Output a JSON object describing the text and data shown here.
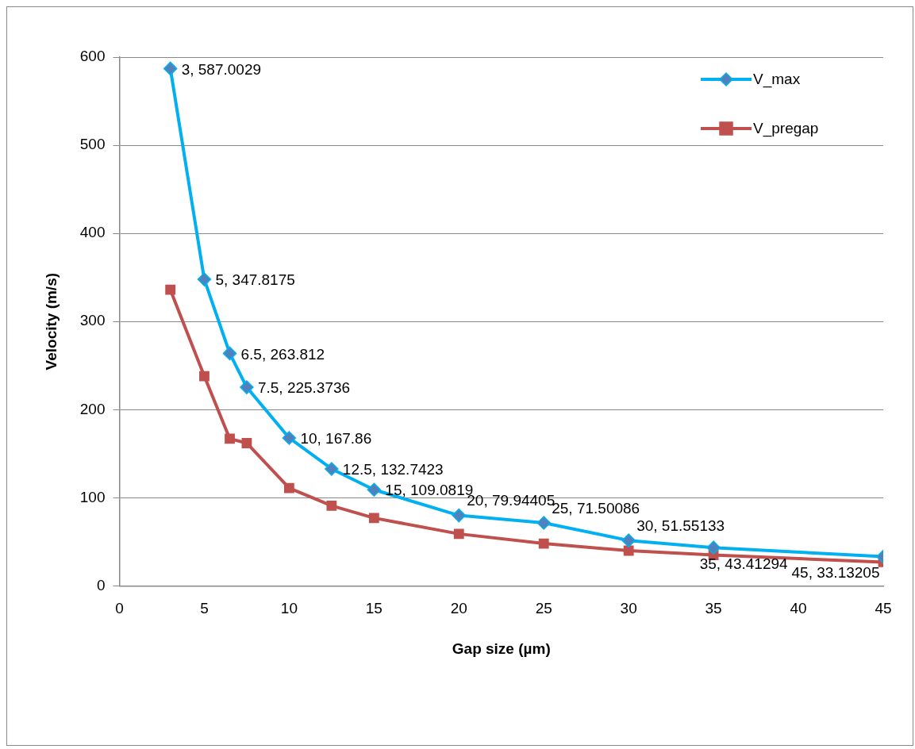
{
  "chart_data": {
    "type": "line",
    "xlabel": "Gap size (µm)",
    "ylabel": "Velocity (m/s)",
    "x": [
      3,
      5,
      6.5,
      7.5,
      10,
      12.5,
      15,
      20,
      25,
      30,
      35,
      45
    ],
    "series": [
      {
        "name": "V_max",
        "color": "#00b0f0",
        "marker": "diamond",
        "values": [
          587.0029,
          347.8175,
          263.812,
          225.3736,
          167.86,
          132.7423,
          109.0819,
          79.94405,
          71.50086,
          51.55133,
          43.41294,
          33.13205
        ],
        "value_labels": [
          "3, 587.0029",
          "5, 347.8175",
          "6.5, 263.812",
          "7.5, 225.3736",
          "10, 167.86",
          "12.5, 132.7423",
          "15, 109.0819",
          "20, 79.94405",
          "25, 71.50086",
          "30, 51.55133",
          "35, 43.41294",
          "45, 33.13205"
        ]
      },
      {
        "name": "V_pregap",
        "color": "#c0504d",
        "marker": "square",
        "values": [
          336,
          238,
          167,
          162,
          111,
          91,
          77,
          59,
          48,
          40,
          35,
          27
        ]
      }
    ],
    "xlim": [
      0,
      45
    ],
    "xticks": [
      0,
      5,
      10,
      15,
      20,
      25,
      30,
      35,
      40,
      45
    ],
    "ylim": [
      0,
      600
    ],
    "yticks": [
      0,
      100,
      200,
      300,
      400,
      500,
      600
    ],
    "grid": "y",
    "legend": "top right"
  }
}
